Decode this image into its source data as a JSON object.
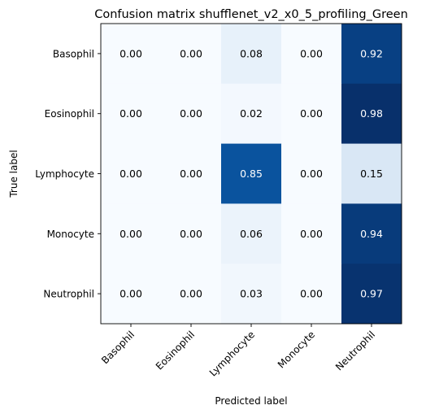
{
  "chart_data": {
    "type": "heatmap",
    "title": "Confusion matrix shufflenet_v2_x0_5_profiling_Green",
    "xlabel": "Predicted label",
    "ylabel": "True label",
    "x_categories": [
      "Basophil",
      "Eosinophil",
      "Lymphocyte",
      "Monocyte",
      "Neutrophil"
    ],
    "y_categories": [
      "Basophil",
      "Eosinophil",
      "Lymphocyte",
      "Monocyte",
      "Neutrophil"
    ],
    "values": [
      [
        0.0,
        0.0,
        0.08,
        0.0,
        0.92
      ],
      [
        0.0,
        0.0,
        0.02,
        0.0,
        0.98
      ],
      [
        0.0,
        0.0,
        0.85,
        0.0,
        0.15
      ],
      [
        0.0,
        0.0,
        0.06,
        0.0,
        0.94
      ],
      [
        0.0,
        0.0,
        0.03,
        0.0,
        0.97
      ]
    ],
    "value_format": "0.00",
    "colormap": "Blues",
    "color_range": [
      0,
      0.98
    ],
    "colors": {
      "low": "#f7fbff",
      "high": "#08306b",
      "text_dark": "#000000",
      "text_light": "#ffffff"
    }
  }
}
